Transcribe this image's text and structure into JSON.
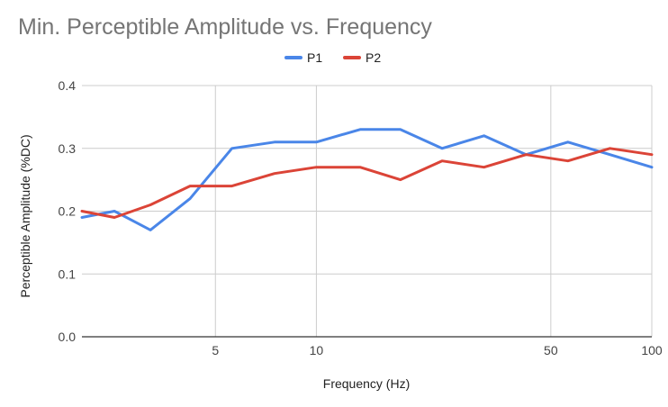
{
  "chart_data": {
    "type": "line",
    "title": "Min. Perceptible Amplitude vs. Frequency",
    "xlabel": "Frequency (Hz)",
    "ylabel": "Perceptible Amplitude (%DC)",
    "x_scale": "log",
    "xlim": [
      2,
      100
    ],
    "ylim": [
      0,
      0.4
    ],
    "x_ticks": [
      5,
      10,
      50,
      100
    ],
    "x_tick_labels": [
      "5",
      "10",
      "50",
      "100"
    ],
    "y_ticks": [
      0,
      0.1,
      0.2,
      0.3,
      0.4
    ],
    "y_tick_labels": [
      "0.0",
      "0.1",
      "0.2",
      "0.3",
      "0.4"
    ],
    "grid": true,
    "legend": "top-center",
    "x": [
      2,
      2.5,
      3.2,
      4.2,
      5.6,
      7.5,
      10,
      13.5,
      17.8,
      23.7,
      31.6,
      42.2,
      56.2,
      75,
      100
    ],
    "series": [
      {
        "name": "P1",
        "color": "#4a86e8",
        "values": [
          0.19,
          0.2,
          0.17,
          0.22,
          0.3,
          0.31,
          0.31,
          0.33,
          0.33,
          0.3,
          0.32,
          0.29,
          0.31,
          0.29,
          0.27
        ]
      },
      {
        "name": "P2",
        "color": "#db4437",
        "values": [
          0.2,
          0.19,
          0.21,
          0.24,
          0.24,
          0.26,
          0.27,
          0.27,
          0.25,
          0.28,
          0.27,
          0.29,
          0.28,
          0.3,
          0.29
        ]
      }
    ]
  }
}
